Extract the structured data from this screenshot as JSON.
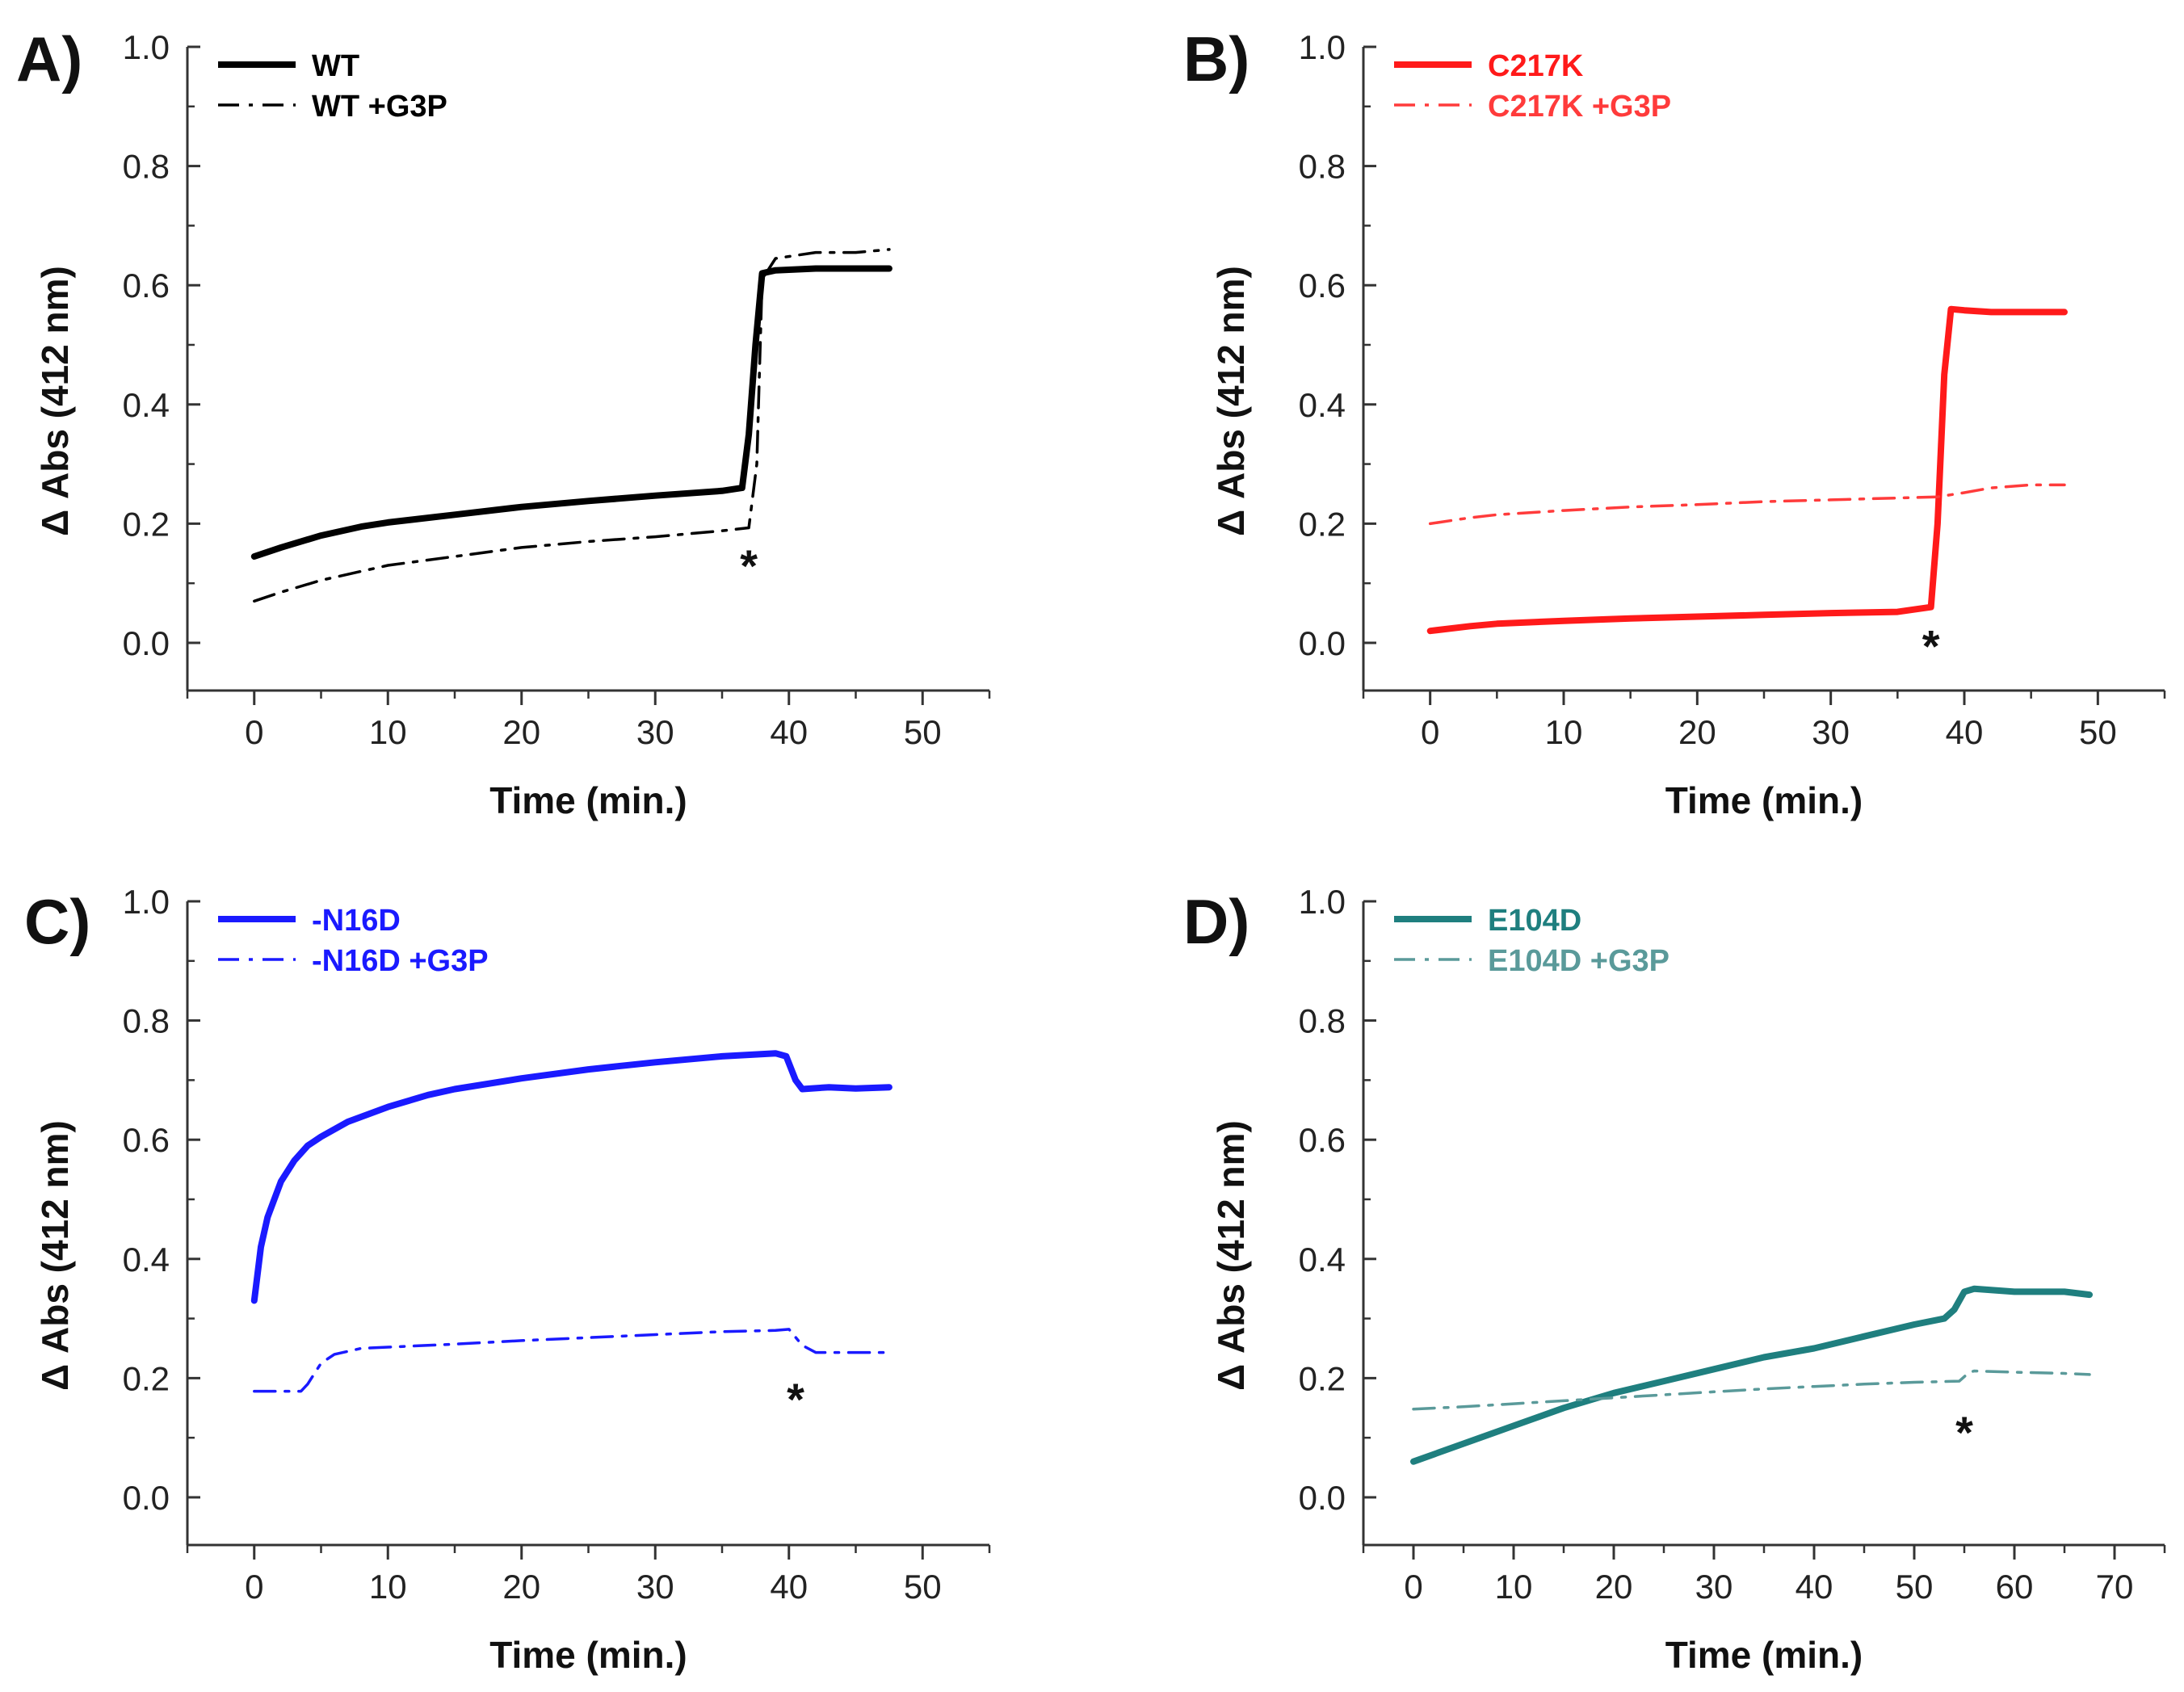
{
  "figure": {
    "name": "enzyme-kinetics-figure"
  },
  "chart_data": [
    {
      "panel": "A)",
      "type": "line",
      "xlabel": "Time (min.)",
      "ylabel": "Δ Abs (412 nm)",
      "xlim": [
        -5,
        55
      ],
      "ylim": [
        -0.08,
        1.0
      ],
      "xticks": [
        0,
        10,
        20,
        30,
        40,
        50
      ],
      "xtick_labels": [
        "0",
        "10",
        "20",
        "30",
        "40",
        "50"
      ],
      "yticks": [
        0.0,
        0.2,
        0.4,
        0.6,
        0.8,
        1.0
      ],
      "ytick_labels": [
        "0.0",
        "0.2",
        "0.4",
        "0.6",
        "0.8",
        "1.0"
      ],
      "legend_position": "top-left",
      "annotations": [
        {
          "text": "*",
          "x": 37,
          "y": 0.13
        }
      ],
      "series": [
        {
          "name": "WT",
          "style": "solid",
          "color": "#000000",
          "x": [
            0,
            2,
            5,
            8,
            10,
            15,
            20,
            25,
            30,
            35,
            36.5,
            37,
            37.5,
            38,
            39,
            42,
            45,
            47.5
          ],
          "y": [
            0.145,
            0.16,
            0.18,
            0.195,
            0.202,
            0.215,
            0.228,
            0.238,
            0.247,
            0.255,
            0.26,
            0.35,
            0.5,
            0.62,
            0.625,
            0.628,
            0.628,
            0.628
          ]
        },
        {
          "name": "WT +G3P",
          "style": "dashdot",
          "color": "#000000",
          "x": [
            0,
            2,
            5,
            8,
            10,
            15,
            20,
            25,
            30,
            35,
            37,
            37.6,
            38,
            39,
            42,
            45,
            47.5
          ],
          "y": [
            0.07,
            0.085,
            0.105,
            0.12,
            0.13,
            0.145,
            0.16,
            0.17,
            0.178,
            0.188,
            0.193,
            0.3,
            0.61,
            0.645,
            0.655,
            0.655,
            0.66
          ]
        }
      ]
    },
    {
      "panel": "B)",
      "type": "line",
      "xlabel": "Time (min.)",
      "ylabel": "Δ Abs (412 nm)",
      "xlim": [
        -5,
        55
      ],
      "ylim": [
        -0.08,
        1.0
      ],
      "xticks": [
        0,
        10,
        20,
        30,
        40,
        50
      ],
      "xtick_labels": [
        "0",
        "10",
        "20",
        "30",
        "40",
        "50"
      ],
      "yticks": [
        0.0,
        0.2,
        0.4,
        0.6,
        0.8,
        1.0
      ],
      "ytick_labels": [
        "0.0",
        "0.2",
        "0.4",
        "0.6",
        "0.8",
        "1.0"
      ],
      "legend_position": "top-left",
      "annotations": [
        {
          "text": "*",
          "x": 37.5,
          "y": -0.005
        }
      ],
      "series": [
        {
          "name": "C217K",
          "style": "solid",
          "color": "#ff1a1a",
          "x": [
            0,
            3,
            5,
            10,
            15,
            20,
            25,
            30,
            35,
            37.5,
            38,
            38.5,
            39,
            40,
            42,
            45,
            47.5
          ],
          "y": [
            0.02,
            0.028,
            0.032,
            0.037,
            0.041,
            0.044,
            0.047,
            0.05,
            0.052,
            0.06,
            0.2,
            0.45,
            0.56,
            0.558,
            0.555,
            0.555,
            0.555
          ]
        },
        {
          "name": "C217K +G3P",
          "style": "dashdot",
          "color": "#ff3b3b",
          "x": [
            0,
            3,
            5,
            10,
            15,
            20,
            25,
            30,
            35,
            38,
            40,
            42,
            45,
            47.5
          ],
          "y": [
            0.2,
            0.21,
            0.215,
            0.222,
            0.228,
            0.232,
            0.237,
            0.24,
            0.243,
            0.245,
            0.252,
            0.26,
            0.265,
            0.265
          ]
        }
      ]
    },
    {
      "panel": "C)",
      "type": "line",
      "xlabel": "Time (min.)",
      "ylabel": "Δ Abs (412 nm)",
      "xlim": [
        -5,
        55
      ],
      "ylim": [
        -0.08,
        1.0
      ],
      "xticks": [
        0,
        10,
        20,
        30,
        40,
        50
      ],
      "xtick_labels": [
        "0",
        "10",
        "20",
        "30",
        "40",
        "50"
      ],
      "yticks": [
        0.0,
        0.2,
        0.4,
        0.6,
        0.8,
        1.0
      ],
      "ytick_labels": [
        "0.0",
        "0.2",
        "0.4",
        "0.6",
        "0.8",
        "1.0"
      ],
      "legend_position": "top-left",
      "annotations": [
        {
          "text": "*",
          "x": 40.5,
          "y": 0.165
        }
      ],
      "series": [
        {
          "name": "-N16D",
          "style": "solid",
          "color": "#1a1aff",
          "x": [
            0,
            0.5,
            1,
            2,
            3,
            4,
            5,
            7,
            10,
            13,
            15,
            20,
            25,
            30,
            35,
            39,
            39.8,
            40.5,
            41,
            43,
            45,
            47.5
          ],
          "y": [
            0.33,
            0.42,
            0.47,
            0.53,
            0.565,
            0.59,
            0.605,
            0.63,
            0.655,
            0.675,
            0.685,
            0.703,
            0.718,
            0.73,
            0.74,
            0.745,
            0.74,
            0.7,
            0.685,
            0.688,
            0.686,
            0.688
          ]
        },
        {
          "name": "-N16D +G3P",
          "style": "dashdot",
          "color": "#1a1aff",
          "x": [
            0,
            3.5,
            4,
            5,
            6,
            8,
            10,
            15,
            20,
            25,
            30,
            35,
            39,
            40,
            41,
            42,
            45,
            47.5
          ],
          "y": [
            0.178,
            0.178,
            0.19,
            0.225,
            0.24,
            0.25,
            0.252,
            0.257,
            0.263,
            0.268,
            0.273,
            0.278,
            0.28,
            0.282,
            0.255,
            0.243,
            0.243,
            0.243
          ]
        }
      ]
    },
    {
      "panel": "D)",
      "type": "line",
      "xlabel": "Time (min.)",
      "ylabel": "Δ Abs (412 nm)",
      "xlim": [
        -5,
        75
      ],
      "ylim": [
        -0.08,
        1.0
      ],
      "xticks": [
        0,
        10,
        20,
        30,
        40,
        50,
        60,
        70
      ],
      "xtick_labels": [
        "0",
        "10",
        "20",
        "30",
        "40",
        "50",
        "60",
        "70"
      ],
      "yticks": [
        0.0,
        0.2,
        0.4,
        0.6,
        0.8,
        1.0
      ],
      "ytick_labels": [
        "0.0",
        "0.2",
        "0.4",
        "0.6",
        "0.8",
        "1.0"
      ],
      "legend_position": "top-left",
      "annotations": [
        {
          "text": "*",
          "x": 55,
          "y": 0.11
        }
      ],
      "series": [
        {
          "name": "E104D",
          "style": "solid",
          "color": "#1f7f7f",
          "x": [
            0,
            5,
            10,
            15,
            20,
            25,
            30,
            35,
            40,
            45,
            50,
            53,
            54,
            55,
            56,
            60,
            65,
            67.5
          ],
          "y": [
            0.06,
            0.09,
            0.12,
            0.15,
            0.175,
            0.195,
            0.215,
            0.235,
            0.25,
            0.27,
            0.29,
            0.3,
            0.315,
            0.345,
            0.35,
            0.345,
            0.345,
            0.34
          ]
        },
        {
          "name": "E104D +G3P",
          "style": "dashdot",
          "color": "#5a9a9a",
          "x": [
            0,
            5,
            10,
            15,
            20,
            25,
            30,
            35,
            40,
            45,
            50,
            54.5,
            55.5,
            56,
            60,
            65,
            67.5
          ],
          "y": [
            0.148,
            0.152,
            0.157,
            0.162,
            0.167,
            0.172,
            0.177,
            0.182,
            0.186,
            0.19,
            0.193,
            0.195,
            0.21,
            0.212,
            0.21,
            0.208,
            0.206
          ]
        }
      ]
    }
  ]
}
